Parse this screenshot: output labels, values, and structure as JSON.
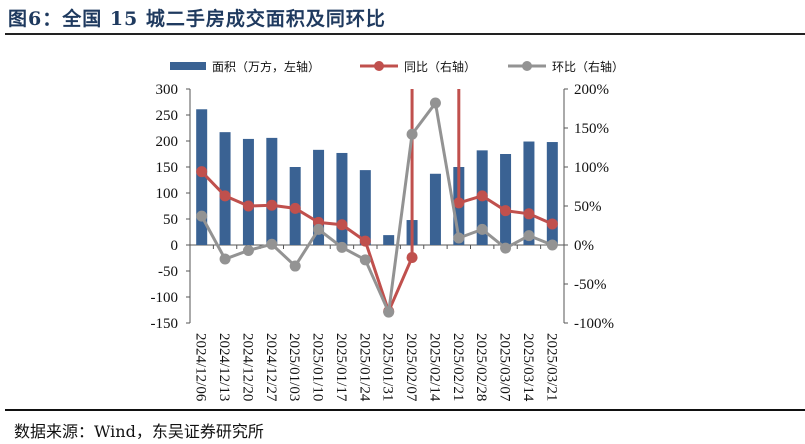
{
  "title": "图6：全国 15 城二手房成交面积及同环比",
  "source": "数据来源：Wind，东吴证券研究所",
  "chart_data": {
    "type": "bar+line",
    "title": "图6：全国 15 城二手房成交面积及同环比",
    "categories": [
      "2024/12/06",
      "2024/12/13",
      "2024/12/20",
      "2024/12/27",
      "2025/01/03",
      "2025/01/10",
      "2025/01/17",
      "2025/01/24",
      "2025/01/31",
      "2025/02/07",
      "2025/02/14",
      "2025/02/21",
      "2025/02/28",
      "2025/03/07",
      "2025/03/14",
      "2025/03/21"
    ],
    "left_axis": {
      "ylim": [
        -150,
        300
      ],
      "ticks": [
        "300",
        "250",
        "200",
        "150",
        "100",
        "50",
        "0",
        "-50",
        "-100",
        "-150"
      ]
    },
    "right_axis": {
      "ylim": [
        -100,
        200
      ],
      "ticks": [
        "200%",
        "150%",
        "100%",
        "50%",
        "0%",
        "-50%",
        "-100%"
      ]
    },
    "legend_position": "top",
    "grid": false,
    "series": [
      {
        "name": "面积（万方，左轴）",
        "type": "bar",
        "axis": "left",
        "color": "#3a6293",
        "values": [
          261,
          217,
          204,
          206,
          150,
          183,
          177,
          144,
          19,
          48,
          137,
          150,
          182,
          175,
          199,
          198
        ]
      },
      {
        "name": "同比（右轴）",
        "type": "line",
        "axis": "right",
        "unit": "%",
        "color": "#c0504d",
        "values": [
          94,
          63,
          50,
          51,
          47,
          29,
          26,
          5,
          -85,
          -16,
          null,
          54,
          63,
          44,
          40,
          27
        ],
        "note_offscale": "2025/02/14 value exceeds axis range"
      },
      {
        "name": "环比（右轴）",
        "type": "line",
        "axis": "right",
        "unit": "%",
        "color": "#939393",
        "values": [
          37,
          -18,
          -7,
          1,
          -27,
          20,
          -3,
          -19,
          -86,
          142,
          182,
          9,
          20,
          -4,
          12,
          0
        ]
      }
    ]
  }
}
